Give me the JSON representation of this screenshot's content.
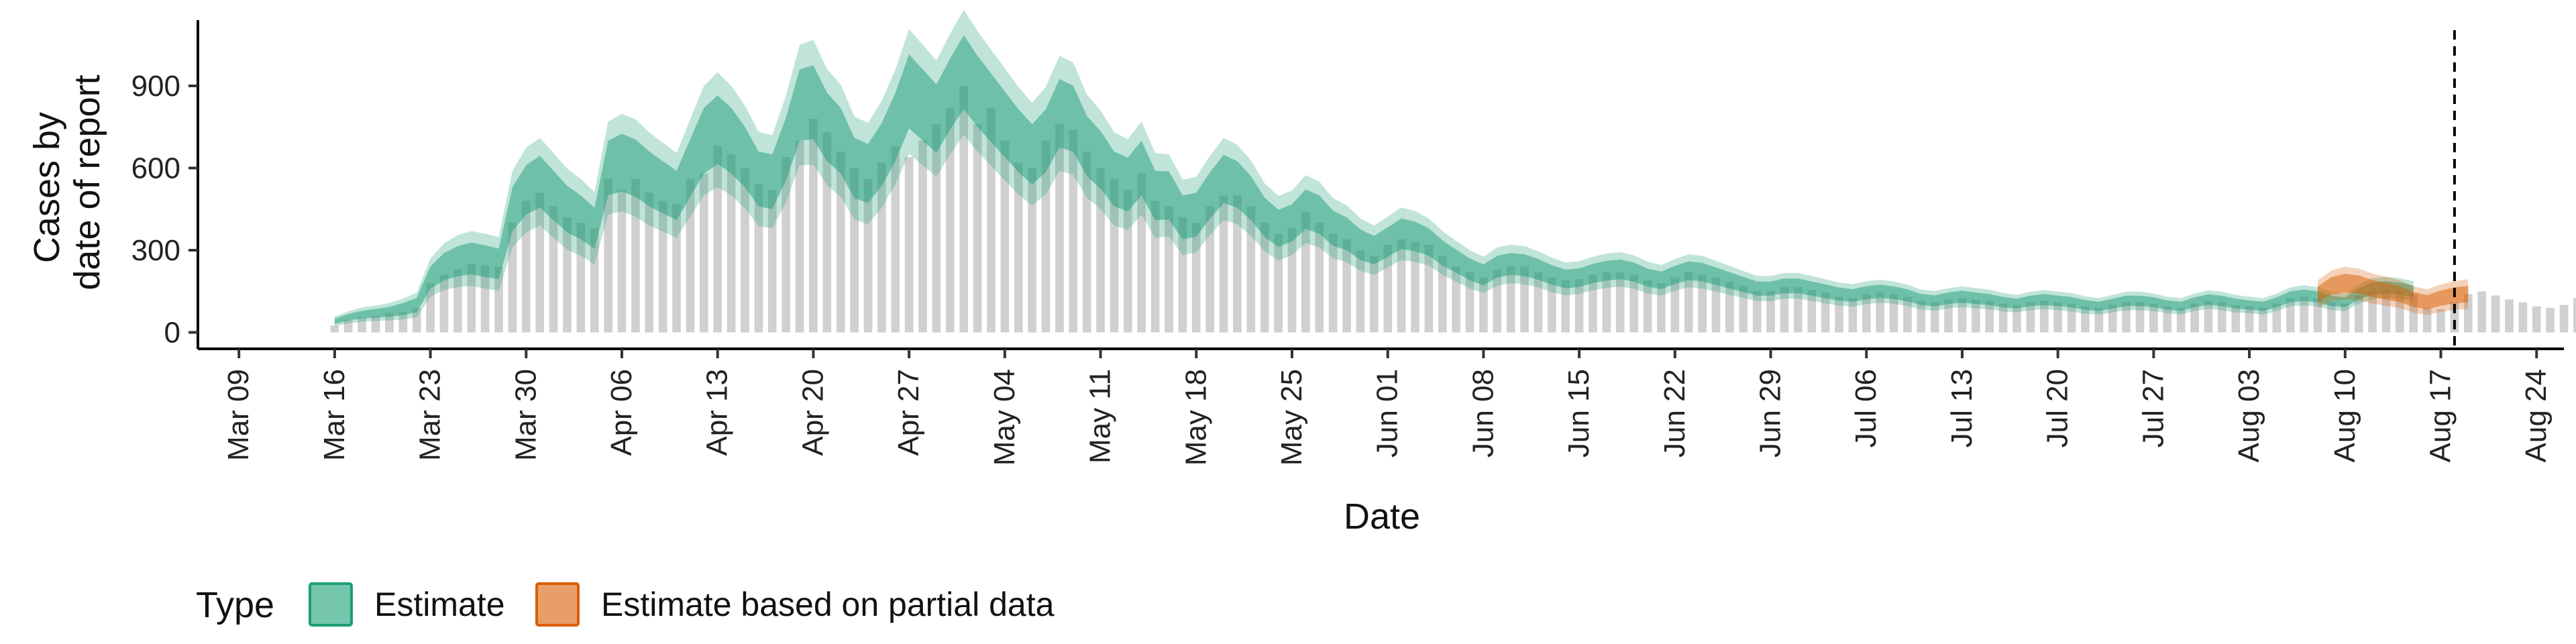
{
  "chart_data": {
    "type": "area",
    "xlabel": "Date",
    "ylabel_lines": [
      "Cases by",
      "date of report"
    ],
    "x_ticks": [
      "Mar 09",
      "Mar 16",
      "Mar 23",
      "Mar 30",
      "Apr 06",
      "Apr 13",
      "Apr 20",
      "Apr 27",
      "May 04",
      "May 11",
      "May 18",
      "May 25",
      "Jun 01",
      "Jun 08",
      "Jun 15",
      "Jun 22",
      "Jun 29",
      "Jul 06",
      "Jul 13",
      "Jul 20",
      "Jul 27",
      "Aug 03",
      "Aug 10",
      "Aug 17",
      "Aug 24"
    ],
    "xlim": [
      "2020-03-06",
      "2020-08-26"
    ],
    "ylim": [
      -60,
      1140
    ],
    "y_ticks": [
      0,
      300,
      600,
      900
    ],
    "vline_date": "2020-08-18",
    "legend": {
      "title": "Type",
      "position": "bottom-left",
      "items": [
        {
          "label": "Estimate",
          "fill": "#1b9e77",
          "stroke": "#1b9e77"
        },
        {
          "label": "Estimate based on partial data",
          "fill": "#d95f02",
          "stroke": "#d95f02"
        }
      ]
    },
    "colors": {
      "estimate": "#1b9e77",
      "partial": "#d95f02",
      "bars": "#a9a9a9"
    },
    "series": [
      {
        "name": "Estimate",
        "start_date": "2020-03-16",
        "median": [
          40,
          55,
          65,
          70,
          75,
          85,
          100,
          200,
          240,
          260,
          270,
          260,
          250,
          450,
          520,
          550,
          500,
          450,
          420,
          380,
          600,
          620,
          600,
          560,
          530,
          500,
          600,
          700,
          740,
          700,
          640,
          560,
          550,
          670,
          830,
          840,
          750,
          700,
          600,
          580,
          650,
          750,
          880,
          830,
          780,
          870,
          950,
          880,
          820,
          760,
          700,
          650,
          700,
          800,
          780,
          680,
          630,
          560,
          540,
          600,
          500,
          500,
          420,
          430,
          500,
          560,
          540,
          490,
          420,
          380,
          400,
          450,
          430,
          380,
          360,
          320,
          300,
          330,
          360,
          350,
          330,
          290,
          260,
          230,
          210,
          240,
          250,
          245,
          230,
          210,
          195,
          200,
          215,
          225,
          230,
          220,
          200,
          190,
          210,
          225,
          220,
          205,
          190,
          175,
          160,
          160,
          170,
          170,
          160,
          150,
          140,
          135,
          145,
          150,
          145,
          135,
          120,
          115,
          125,
          130,
          125,
          120,
          110,
          105,
          115,
          120,
          115,
          110,
          100,
          95,
          105,
          115,
          115,
          110,
          100,
          95,
          110,
          120,
          115,
          105,
          100,
          95,
          110,
          130,
          135,
          130,
          115,
          110,
          140,
          160,
          165,
          160,
          150
        ],
        "inner_width": [
          10,
          12,
          14,
          16,
          18,
          22,
          26,
          40,
          50,
          55,
          58,
          58,
          56,
          80,
          90,
          95,
          90,
          85,
          80,
          75,
          100,
          105,
          105,
          100,
          95,
          90,
          105,
          120,
          125,
          120,
          110,
          100,
          100,
          115,
          130,
          135,
          125,
          120,
          110,
          108,
          115,
          125,
          135,
          130,
          125,
          130,
          135,
          130,
          125,
          120,
          115,
          110,
          115,
          125,
          120,
          110,
          105,
          100,
          98,
          100,
          90,
          88,
          80,
          80,
          85,
          88,
          85,
          80,
          72,
          68,
          68,
          72,
          70,
          64,
          60,
          56,
          52,
          54,
          56,
          54,
          50,
          46,
          42,
          40,
          38,
          40,
          40,
          40,
          38,
          36,
          34,
          34,
          35,
          36,
          36,
          35,
          33,
          32,
          33,
          34,
          34,
          32,
          30,
          28,
          26,
          26,
          27,
          27,
          26,
          25,
          24,
          23,
          24,
          24,
          23,
          22,
          20,
          20,
          21,
          22,
          21,
          20,
          19,
          18,
          19,
          20,
          19,
          19,
          18,
          17,
          18,
          19,
          19,
          18,
          17,
          17,
          18,
          19,
          19,
          18,
          17,
          17,
          18,
          20,
          21,
          20,
          19,
          18,
          20,
          22,
          22,
          22,
          21
        ],
        "outer_width": [
          18,
          22,
          26,
          28,
          32,
          38,
          45,
          70,
          85,
          95,
          100,
          100,
          98,
          140,
          155,
          160,
          155,
          148,
          140,
          132,
          170,
          178,
          178,
          170,
          162,
          155,
          178,
          200,
          210,
          200,
          188,
          172,
          170,
          195,
          220,
          228,
          212,
          205,
          188,
          185,
          195,
          210,
          228,
          220,
          212,
          220,
          228,
          220,
          212,
          205,
          196,
          188,
          196,
          210,
          205,
          188,
          180,
          170,
          166,
          170,
          155,
          150,
          138,
          138,
          145,
          150,
          145,
          138,
          124,
          118,
          118,
          124,
          120,
          110,
          104,
          96,
          90,
          93,
          96,
          93,
          86,
          80,
          74,
          70,
          66,
          70,
          70,
          70,
          66,
          63,
          60,
          60,
          61,
          63,
          63,
          61,
          58,
          56,
          58,
          60,
          60,
          56,
          53,
          49,
          46,
          46,
          47,
          47,
          46,
          44,
          42,
          41,
          42,
          42,
          41,
          39,
          36,
          36,
          37,
          38,
          37,
          36,
          34,
          32,
          34,
          35,
          34,
          34,
          32,
          30,
          32,
          34,
          34,
          32,
          30,
          30,
          32,
          34,
          34,
          32,
          30,
          30,
          32,
          35,
          37,
          35,
          34,
          32,
          35,
          38,
          38,
          38,
          37
        ]
      },
      {
        "name": "Estimate based on partial data",
        "start_date": "2020-08-08",
        "median": [
          140,
          170,
          180,
          175,
          160,
          150,
          140,
          120,
          110,
          125,
          135,
          140
        ],
        "inner_width": [
          28,
          32,
          34,
          33,
          31,
          30,
          29,
          27,
          26,
          28,
          29,
          30
        ],
        "outer_width": [
          50,
          56,
          60,
          58,
          55,
          53,
          51,
          48,
          47,
          50,
          52,
          54
        ]
      }
    ],
    "reported_cases": {
      "start_date": "2020-03-16",
      "values": [
        25,
        45,
        55,
        60,
        70,
        75,
        90,
        180,
        210,
        230,
        250,
        245,
        240,
        400,
        480,
        510,
        460,
        420,
        400,
        380,
        560,
        520,
        560,
        510,
        480,
        470,
        560,
        580,
        680,
        650,
        600,
        540,
        520,
        640,
        700,
        780,
        730,
        660,
        600,
        560,
        620,
        680,
        640,
        700,
        760,
        820,
        900,
        760,
        820,
        700,
        620,
        600,
        700,
        760,
        740,
        660,
        600,
        560,
        520,
        580,
        480,
        460,
        420,
        400,
        460,
        500,
        500,
        460,
        400,
        360,
        380,
        440,
        400,
        360,
        340,
        300,
        280,
        320,
        340,
        330,
        320,
        280,
        240,
        220,
        200,
        230,
        240,
        240,
        220,
        200,
        190,
        195,
        210,
        220,
        220,
        210,
        190,
        180,
        200,
        220,
        210,
        200,
        185,
        170,
        150,
        150,
        165,
        165,
        155,
        145,
        130,
        125,
        140,
        145,
        140,
        130,
        115,
        110,
        120,
        125,
        120,
        115,
        105,
        100,
        110,
        115,
        110,
        105,
        95,
        90,
        100,
        110,
        110,
        105,
        95,
        90,
        105,
        115,
        110,
        100,
        95,
        90,
        105,
        125,
        130,
        125,
        110,
        105,
        135,
        150,
        155,
        150,
        140,
        90,
        85,
        110,
        140,
        150,
        135,
        120,
        110,
        95,
        90,
        100,
        125,
        130
      ]
    }
  }
}
